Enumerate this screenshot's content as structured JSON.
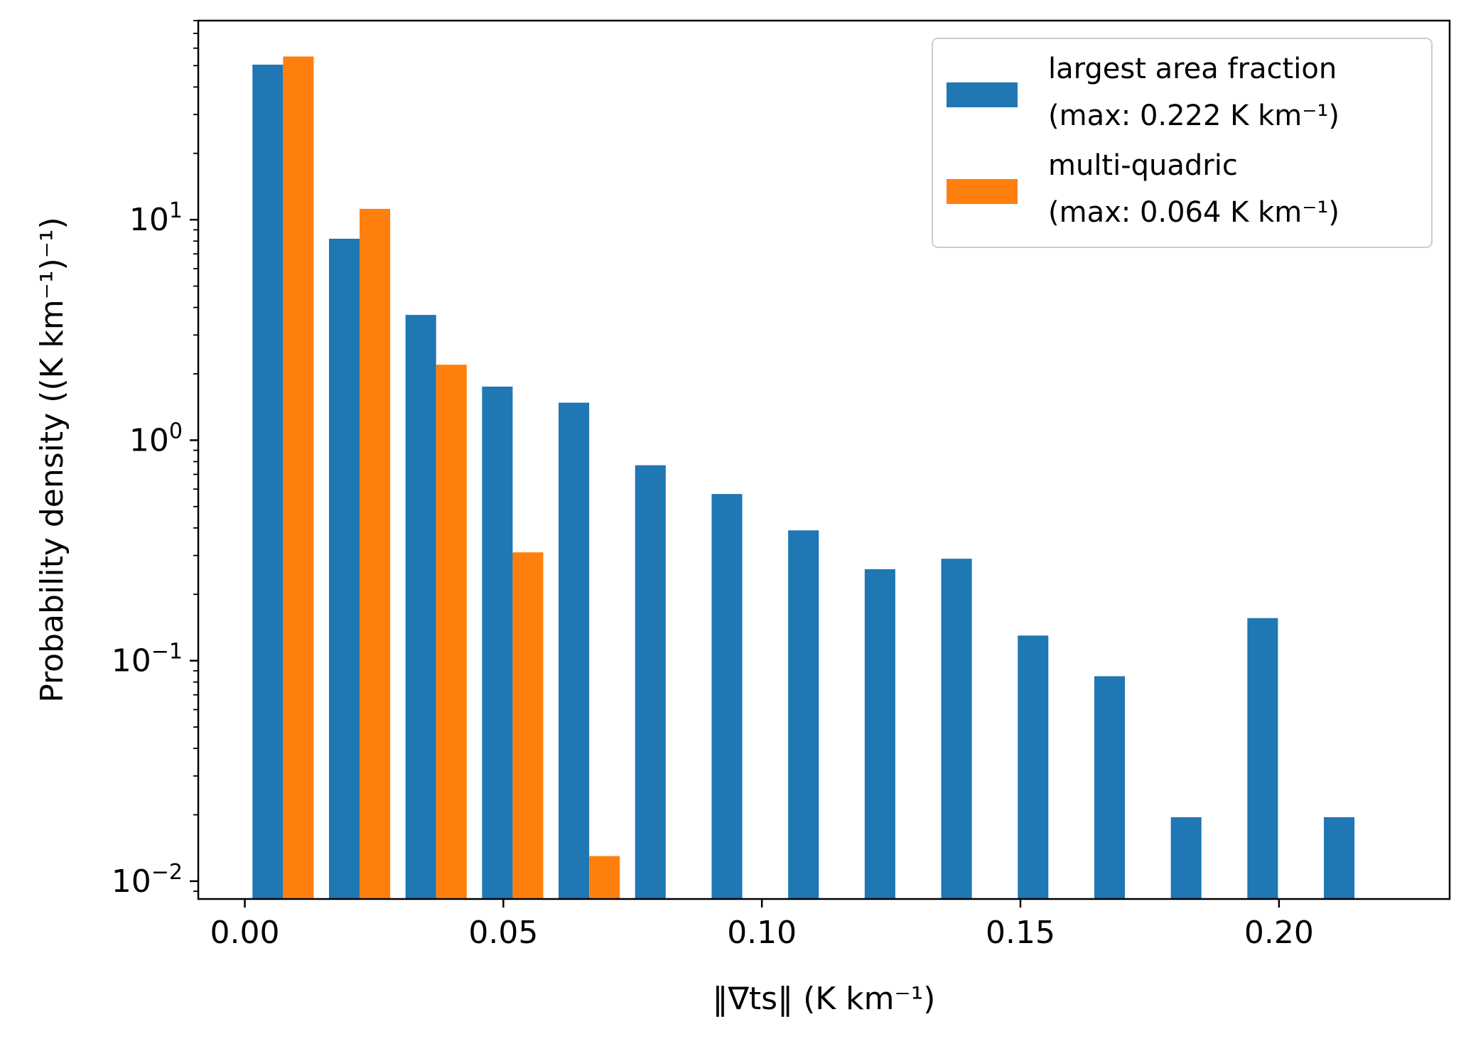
{
  "chart_data": {
    "type": "bar",
    "title": "",
    "xlabel": "‖∇ts‖ (K km⁻¹)",
    "ylabel": "Probability density ((K km⁻¹)⁻¹)",
    "yscale": "log",
    "xlim": [
      -0.009,
      0.233
    ],
    "ylim": [
      0.0083,
      80
    ],
    "grid": false,
    "legend_position": "top-right",
    "bin_edges": [
      0.0,
      0.0148,
      0.0296,
      0.0444,
      0.0592,
      0.074,
      0.0888,
      0.1036,
      0.1184,
      0.1332,
      0.148,
      0.1628,
      0.1776,
      0.1924,
      0.2072,
      0.222
    ],
    "x_ticks": [
      {
        "value": 0.0,
        "label": "0.00"
      },
      {
        "value": 0.05,
        "label": "0.05"
      },
      {
        "value": 0.1,
        "label": "0.10"
      },
      {
        "value": 0.15,
        "label": "0.15"
      },
      {
        "value": 0.2,
        "label": "0.20"
      }
    ],
    "y_ticks": [
      {
        "value": 0.01,
        "base": "10",
        "exp": "−2"
      },
      {
        "value": 0.1,
        "base": "10",
        "exp": "−1"
      },
      {
        "value": 1,
        "base": "10",
        "exp": "0"
      },
      {
        "value": 10,
        "base": "10",
        "exp": "1"
      }
    ],
    "series": [
      {
        "name_line1": "largest area fraction",
        "name_line2": "(max: 0.222 K km⁻¹)",
        "color": "#1f77b4",
        "values": [
          50.5,
          8.2,
          3.7,
          1.75,
          1.48,
          0.77,
          0.57,
          0.39,
          0.26,
          0.29,
          0.13,
          0.085,
          0.0195,
          0.156,
          0.0195
        ]
      },
      {
        "name_line1": "multi-quadric",
        "name_line2": "(max: 0.064 K km⁻¹)",
        "color": "#ff7f0e",
        "values": [
          55,
          11.2,
          2.2,
          0.31,
          0.013,
          null,
          null,
          null,
          null,
          null,
          null,
          null,
          null,
          null,
          null
        ]
      }
    ]
  }
}
